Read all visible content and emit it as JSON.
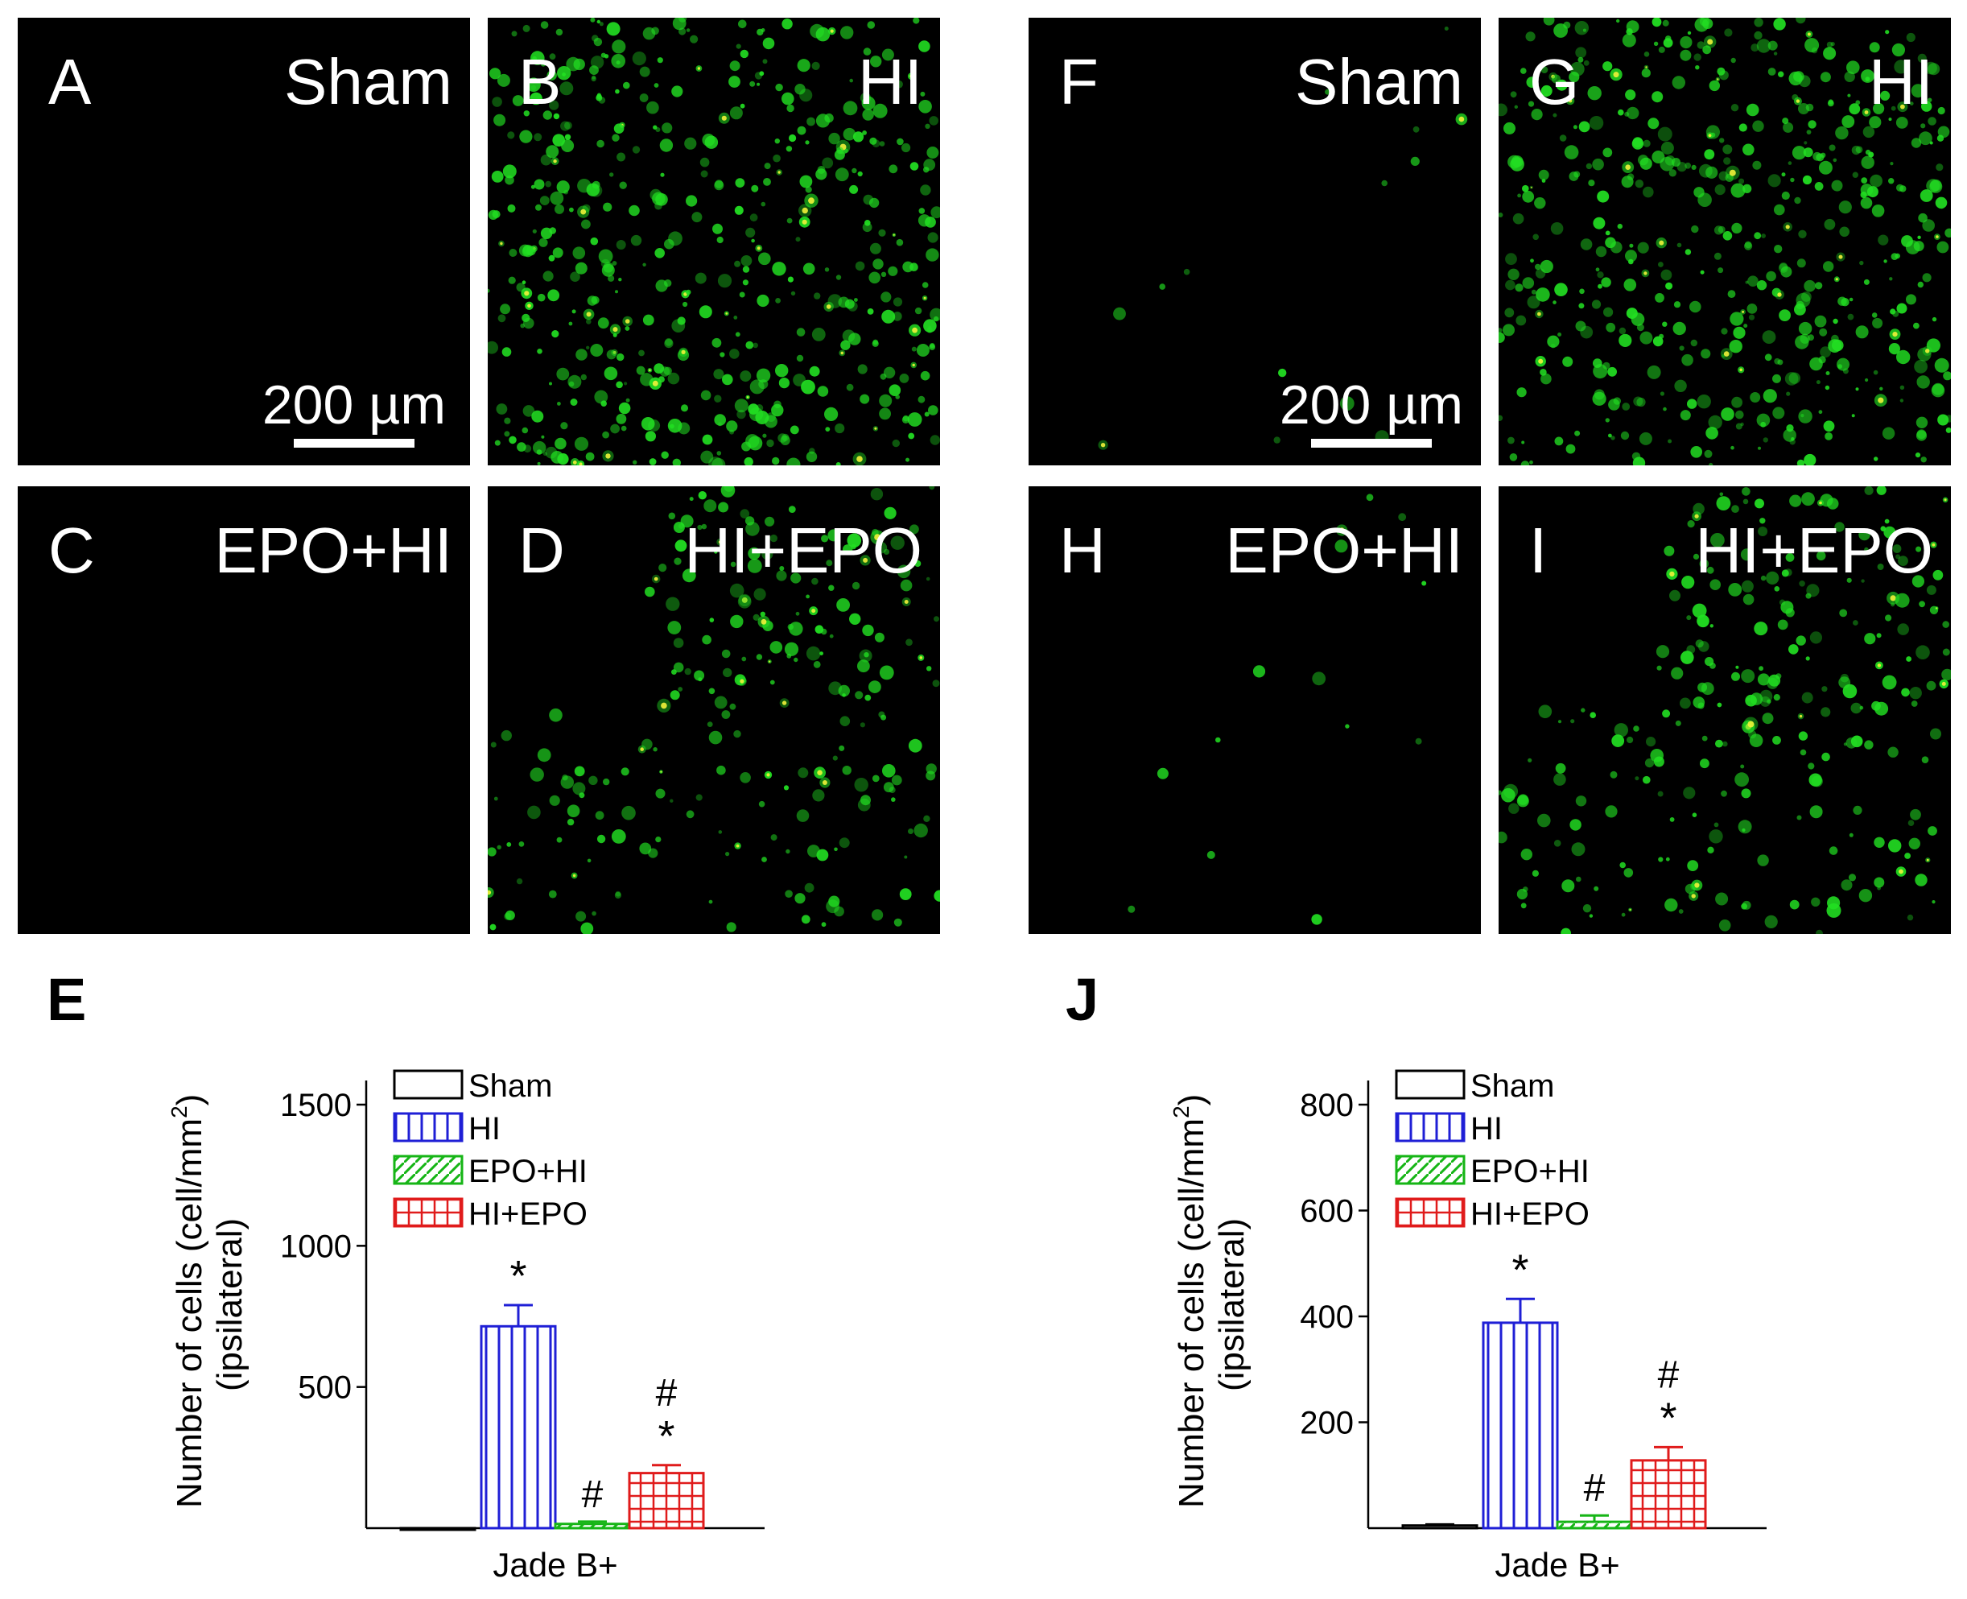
{
  "panels": [
    {
      "letter": "A",
      "condition": "Sham",
      "scale": "200 µm",
      "density": 0
    },
    {
      "letter": "B",
      "condition": "HI",
      "scale": "",
      "density": 1
    },
    {
      "letter": "C",
      "condition": "EPO+HI",
      "scale": "",
      "density": 0
    },
    {
      "letter": "D",
      "condition": "HI+EPO",
      "scale": "",
      "density": 0.45
    },
    {
      "letter": "F",
      "condition": "Sham",
      "scale": "200 µm",
      "density": 0.02
    },
    {
      "letter": "G",
      "condition": "HI",
      "scale": "",
      "density": 1
    },
    {
      "letter": "H",
      "condition": "EPO+HI",
      "scale": "",
      "density": 0.02
    },
    {
      "letter": "I",
      "condition": "HI+EPO",
      "scale": "",
      "density": 0.5
    }
  ],
  "colors": {
    "sham": "#000000",
    "hi": "#1f1fd6",
    "epo_hi": "#16b516",
    "hi_epo": "#e01b1b",
    "fluorescence": "#22e022"
  },
  "chart_data": [
    {
      "panel": "E",
      "type": "bar",
      "ylabel_line1": "Number of cells (cell/mm",
      "ylabel_sup": "2",
      "ylabel_line1_end": ")",
      "ylabel_line2": "(ipsilateral)",
      "xlabel": "Jade B+",
      "ylim": [
        0,
        1500
      ],
      "yticks": [
        500,
        1000,
        1500
      ],
      "legend_position": "top",
      "series": [
        {
          "name": "Sham",
          "value": 0,
          "error": 0,
          "annotation": ""
        },
        {
          "name": "HI",
          "value": 715,
          "error": 75,
          "annotation": "*"
        },
        {
          "name": "EPO+HI",
          "value": 15,
          "error": 8,
          "annotation": "#"
        },
        {
          "name": "HI+EPO",
          "value": 195,
          "error": 28,
          "annotation": "#\n*"
        }
      ]
    },
    {
      "panel": "J",
      "type": "bar",
      "ylabel_line1": "Number of cells (cell/mm",
      "ylabel_sup": "2",
      "ylabel_line1_end": ")",
      "ylabel_line2": "(ipsilateral)",
      "xlabel": "Jade B+",
      "ylim": [
        0,
        800
      ],
      "yticks": [
        200,
        400,
        600,
        800
      ],
      "legend_position": "top",
      "series": [
        {
          "name": "Sham",
          "value": 5,
          "error": 2,
          "annotation": ""
        },
        {
          "name": "HI",
          "value": 388,
          "error": 45,
          "annotation": "*"
        },
        {
          "name": "EPO+HI",
          "value": 12,
          "error": 12,
          "annotation": "#"
        },
        {
          "name": "HI+EPO",
          "value": 128,
          "error": 25,
          "annotation": "#\n*"
        }
      ]
    }
  ]
}
